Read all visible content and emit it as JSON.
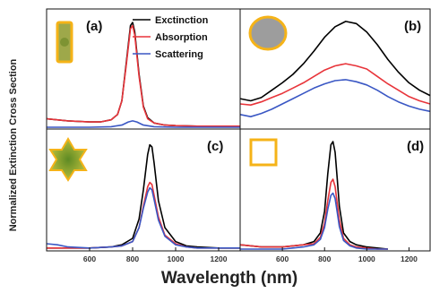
{
  "figure": {
    "ylabel": "Normalized Extinction Cross Section",
    "xlabel": "Wavelength (nm)"
  },
  "colors": {
    "Extinction": "#000000",
    "Absorption": "#e8343a",
    "Scattering": "#3a57c4",
    "particle_fill": "#9ea84a",
    "particle_edge": "#f5b318",
    "sphere_fill": "#9d9d9d"
  },
  "legend": {
    "placement": "top-right of panel (a)",
    "entries": [
      "Exctinction",
      "Absorption",
      "Scattering"
    ]
  },
  "chart_data": [
    {
      "panel": "(a)",
      "type": "line",
      "inset_icon": "rod-particle-icon",
      "xlim": [
        400,
        1300
      ],
      "ylim": [
        0,
        1.05
      ],
      "xticks": [],
      "grid": false,
      "series": [
        {
          "name": "Exctinction",
          "x": [
            400,
            500,
            600,
            650,
            700,
            730,
            750,
            770,
            790,
            800,
            810,
            830,
            850,
            870,
            900,
            950,
            1000,
            1100,
            1200,
            1300
          ],
          "y": [
            0.08,
            0.06,
            0.05,
            0.05,
            0.07,
            0.12,
            0.25,
            0.6,
            0.96,
            0.99,
            0.9,
            0.5,
            0.2,
            0.09,
            0.04,
            0.02,
            0.015,
            0.01,
            0.01,
            0.01
          ]
        },
        {
          "name": "Absorption",
          "x": [
            400,
            500,
            600,
            650,
            700,
            730,
            750,
            770,
            790,
            800,
            810,
            830,
            850,
            870,
            900,
            950,
            1000,
            1100,
            1200,
            1300
          ],
          "y": [
            0.08,
            0.06,
            0.05,
            0.05,
            0.07,
            0.12,
            0.25,
            0.58,
            0.93,
            0.96,
            0.87,
            0.48,
            0.19,
            0.08,
            0.04,
            0.02,
            0.015,
            0.01,
            0.01,
            0.01
          ]
        },
        {
          "name": "Scattering",
          "x": [
            400,
            600,
            700,
            750,
            780,
            800,
            820,
            850,
            900,
            1000,
            1300
          ],
          "y": [
            0.0,
            0.0,
            0.005,
            0.02,
            0.05,
            0.06,
            0.05,
            0.02,
            0.005,
            0.0,
            0.0
          ]
        }
      ]
    },
    {
      "panel": "(b)",
      "type": "line",
      "inset_icon": "sphere-particle-icon",
      "xlim": [
        400,
        1300
      ],
      "ylim": [
        0,
        1.05
      ],
      "xticks": [],
      "grid": false,
      "series": [
        {
          "name": "Exctinction",
          "x": [
            400,
            450,
            500,
            550,
            600,
            650,
            700,
            750,
            800,
            850,
            900,
            950,
            1000,
            1050,
            1100,
            1150,
            1200,
            1250,
            1300
          ],
          "y": [
            0.27,
            0.25,
            0.28,
            0.35,
            0.42,
            0.5,
            0.6,
            0.72,
            0.85,
            0.95,
            1.0,
            0.98,
            0.9,
            0.78,
            0.64,
            0.52,
            0.42,
            0.35,
            0.3
          ]
        },
        {
          "name": "Absorption",
          "x": [
            400,
            450,
            500,
            550,
            600,
            650,
            700,
            750,
            800,
            850,
            900,
            950,
            1000,
            1050,
            1100,
            1150,
            1200,
            1250,
            1300
          ],
          "y": [
            0.22,
            0.21,
            0.24,
            0.28,
            0.32,
            0.37,
            0.42,
            0.48,
            0.54,
            0.58,
            0.6,
            0.58,
            0.55,
            0.48,
            0.41,
            0.35,
            0.29,
            0.25,
            0.22
          ]
        },
        {
          "name": "Scattering",
          "x": [
            400,
            450,
            500,
            550,
            600,
            650,
            700,
            750,
            800,
            850,
            900,
            950,
            1000,
            1050,
            1100,
            1150,
            1200,
            1250,
            1300
          ],
          "y": [
            0.12,
            0.1,
            0.13,
            0.17,
            0.22,
            0.27,
            0.32,
            0.37,
            0.41,
            0.44,
            0.45,
            0.43,
            0.4,
            0.35,
            0.29,
            0.24,
            0.2,
            0.17,
            0.15
          ]
        }
      ]
    },
    {
      "panel": "(c)",
      "type": "line",
      "inset_icon": "star-particle-icon",
      "xlim": [
        400,
        1300
      ],
      "ylim": [
        0,
        1.05
      ],
      "xticks": [
        600,
        800,
        1000,
        1200
      ],
      "grid": false,
      "series": [
        {
          "name": "Exctinction",
          "x": [
            400,
            500,
            600,
            700,
            750,
            800,
            830,
            850,
            870,
            880,
            890,
            900,
            920,
            950,
            1000,
            1050,
            1100,
            1200,
            1300
          ],
          "y": [
            0.01,
            0.01,
            0.01,
            0.02,
            0.04,
            0.1,
            0.28,
            0.55,
            0.88,
            0.97,
            0.95,
            0.8,
            0.45,
            0.2,
            0.07,
            0.03,
            0.02,
            0.01,
            0.01
          ]
        },
        {
          "name": "Absorption",
          "x": [
            400,
            500,
            600,
            700,
            750,
            800,
            830,
            850,
            870,
            880,
            890,
            900,
            920,
            950,
            1000,
            1050,
            1100,
            1200,
            1300
          ],
          "y": [
            0.01,
            0.01,
            0.01,
            0.02,
            0.03,
            0.07,
            0.2,
            0.4,
            0.58,
            0.62,
            0.6,
            0.5,
            0.3,
            0.13,
            0.05,
            0.02,
            0.01,
            0.01,
            0.01
          ]
        },
        {
          "name": "Scattering",
          "x": [
            400,
            450,
            500,
            600,
            700,
            750,
            800,
            830,
            850,
            870,
            880,
            890,
            900,
            920,
            950,
            1000,
            1050,
            1100,
            1300
          ],
          "y": [
            0.05,
            0.04,
            0.02,
            0.01,
            0.02,
            0.03,
            0.07,
            0.2,
            0.38,
            0.53,
            0.57,
            0.55,
            0.46,
            0.27,
            0.12,
            0.04,
            0.02,
            0.01,
            0.01
          ]
        }
      ]
    },
    {
      "panel": "(d)",
      "type": "line",
      "inset_icon": "square-frame-particle-icon",
      "xlim": [
        400,
        1300
      ],
      "ylim": [
        0,
        1.05
      ],
      "xticks": [
        600,
        800,
        1000,
        1200
      ],
      "grid": false,
      "series": [
        {
          "name": "Exctinction",
          "x": [
            400,
            500,
            600,
            650,
            700,
            750,
            780,
            800,
            815,
            830,
            840,
            850,
            860,
            870,
            890,
            920,
            950,
            1000,
            1050,
            1100
          ],
          "y": [
            0.04,
            0.02,
            0.02,
            0.03,
            0.04,
            0.07,
            0.15,
            0.35,
            0.7,
            0.97,
            1.0,
            0.9,
            0.65,
            0.4,
            0.15,
            0.07,
            0.04,
            0.02,
            0.01,
            0.0
          ]
        },
        {
          "name": "Absorption",
          "x": [
            400,
            500,
            600,
            650,
            700,
            750,
            780,
            800,
            815,
            830,
            840,
            850,
            860,
            870,
            890,
            920,
            950,
            1000,
            1050,
            1100
          ],
          "y": [
            0.04,
            0.02,
            0.02,
            0.03,
            0.04,
            0.05,
            0.11,
            0.24,
            0.45,
            0.62,
            0.65,
            0.58,
            0.42,
            0.27,
            0.1,
            0.04,
            0.02,
            0.01,
            0.0,
            0.0
          ]
        },
        {
          "name": "Scattering",
          "x": [
            400,
            500,
            600,
            650,
            700,
            750,
            780,
            800,
            815,
            830,
            840,
            850,
            860,
            870,
            890,
            920,
            950,
            1000,
            1050,
            1100
          ],
          "y": [
            0.0,
            0.0,
            0.0,
            0.01,
            0.02,
            0.04,
            0.09,
            0.2,
            0.37,
            0.5,
            0.52,
            0.47,
            0.34,
            0.21,
            0.08,
            0.03,
            0.01,
            0.0,
            0.0,
            0.0
          ]
        }
      ]
    }
  ]
}
